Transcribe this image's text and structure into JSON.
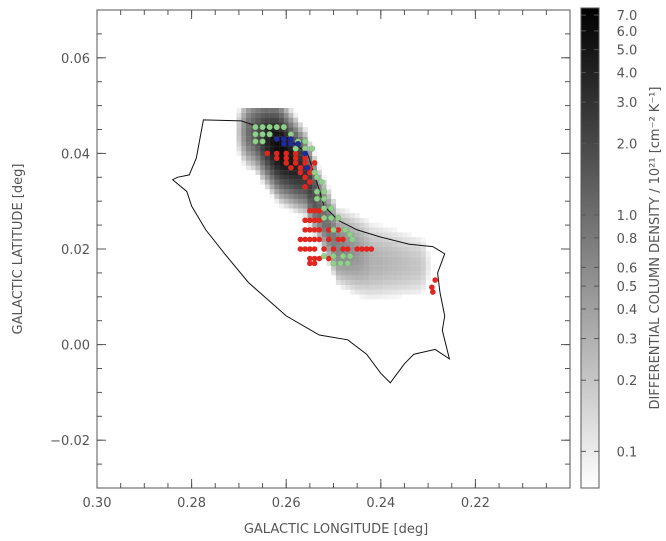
{
  "chart_data": {
    "type": "heatmap",
    "title": "",
    "xlabel": "GALACTIC LONGITUDE [deg]",
    "ylabel": "GALACTIC LATITUDE [deg]",
    "xlim": [
      0.3,
      0.2
    ],
    "ylim": [
      -0.03,
      0.07
    ],
    "x_ticks": [
      0.3,
      0.28,
      0.26,
      0.24,
      0.22
    ],
    "x_tick_labels": [
      "0.30",
      "0.28",
      "0.26",
      "0.24",
      "0.22"
    ],
    "y_ticks": [
      -0.02,
      0.0,
      0.02,
      0.04,
      0.06
    ],
    "y_tick_labels": [
      "−0.02",
      "0.00",
      "0.02",
      "0.04",
      "0.06"
    ],
    "colorbar": {
      "label": "DIFFERENTIAL COLUMN DENSITY / 10²¹ [cm⁻² K⁻¹]",
      "scale": "log",
      "range": [
        0.07,
        7.5
      ],
      "ticks": [
        0.1,
        0.2,
        0.3,
        0.4,
        0.5,
        0.6,
        0.8,
        1.0,
        2.0,
        3.0,
        4.0,
        5.0,
        6.0,
        7.0
      ],
      "tick_labels": [
        "0.1",
        "0.2",
        "0.3",
        "0.4",
        "0.5",
        "0.6",
        "0.8",
        "1.0",
        "2.0",
        "3.0",
        "4.0",
        "5.0",
        "6.0",
        "7.0"
      ],
      "colormap": [
        "#ffffff",
        "#000000"
      ]
    },
    "density_ridge": [
      {
        "l": 0.2665,
        "b": 0.0445,
        "peak": 1.5,
        "width": 0.0035
      },
      {
        "l": 0.2615,
        "b": 0.041,
        "peak": 6.5,
        "width": 0.004
      },
      {
        "l": 0.256,
        "b": 0.036,
        "peak": 3.0,
        "width": 0.0035
      },
      {
        "l": 0.253,
        "b": 0.029,
        "peak": 1.2,
        "width": 0.0035
      },
      {
        "l": 0.249,
        "b": 0.0205,
        "peak": 0.7,
        "width": 0.004
      },
      {
        "l": 0.242,
        "b": 0.0175,
        "peak": 0.3,
        "width": 0.005
      },
      {
        "l": 0.232,
        "b": 0.0165,
        "peak": 0.2,
        "width": 0.0045
      }
    ],
    "contour": [
      [
        0.2775,
        0.047
      ],
      [
        0.2695,
        0.0468
      ],
      [
        0.261,
        0.044
      ],
      [
        0.2555,
        0.04
      ],
      [
        0.2535,
        0.034
      ],
      [
        0.252,
        0.029
      ],
      [
        0.249,
        0.026
      ],
      [
        0.245,
        0.024
      ],
      [
        0.24,
        0.0225
      ],
      [
        0.234,
        0.021
      ],
      [
        0.229,
        0.0205
      ],
      [
        0.2265,
        0.019
      ],
      [
        0.228,
        0.015
      ],
      [
        0.2275,
        0.011
      ],
      [
        0.2265,
        0.006
      ],
      [
        0.227,
        0.003
      ],
      [
        0.2255,
        -0.003
      ],
      [
        0.2285,
        -0.001
      ],
      [
        0.233,
        -0.002
      ],
      [
        0.235,
        -0.004
      ],
      [
        0.238,
        -0.008
      ],
      [
        0.24,
        -0.006
      ],
      [
        0.243,
        -0.002
      ],
      [
        0.247,
        0.001
      ],
      [
        0.253,
        0.002
      ],
      [
        0.26,
        0.006
      ],
      [
        0.268,
        0.013
      ],
      [
        0.273,
        0.019
      ],
      [
        0.277,
        0.024
      ],
      [
        0.28,
        0.029
      ],
      [
        0.281,
        0.032
      ],
      [
        0.284,
        0.0345
      ],
      [
        0.283,
        0.035
      ],
      [
        0.2805,
        0.0355
      ],
      [
        0.279,
        0.039
      ],
      [
        0.2775,
        0.047
      ]
    ],
    "series": [
      {
        "marker": "filled-circle",
        "color": "#e0261f",
        "points": [
          [
            0.264,
            0.04
          ],
          [
            0.262,
            0.04
          ],
          [
            0.26,
            0.04
          ],
          [
            0.258,
            0.04
          ],
          [
            0.262,
            0.039
          ],
          [
            0.26,
            0.039
          ],
          [
            0.258,
            0.039
          ],
          [
            0.256,
            0.039
          ],
          [
            0.26,
            0.038
          ],
          [
            0.258,
            0.038
          ],
          [
            0.256,
            0.038
          ],
          [
            0.254,
            0.038
          ],
          [
            0.259,
            0.037
          ],
          [
            0.257,
            0.037
          ],
          [
            0.255,
            0.037
          ],
          [
            0.257,
            0.036
          ],
          [
            0.255,
            0.036
          ],
          [
            0.256,
            0.035
          ],
          [
            0.255,
            0.034
          ],
          [
            0.256,
            0.033
          ],
          [
            0.255,
            0.028
          ],
          [
            0.254,
            0.028
          ],
          [
            0.253,
            0.028
          ],
          [
            0.256,
            0.026
          ],
          [
            0.255,
            0.026
          ],
          [
            0.254,
            0.026
          ],
          [
            0.253,
            0.026
          ],
          [
            0.256,
            0.024
          ],
          [
            0.255,
            0.024
          ],
          [
            0.254,
            0.024
          ],
          [
            0.253,
            0.024
          ],
          [
            0.251,
            0.024
          ],
          [
            0.249,
            0.024
          ],
          [
            0.257,
            0.022
          ],
          [
            0.256,
            0.022
          ],
          [
            0.255,
            0.022
          ],
          [
            0.254,
            0.022
          ],
          [
            0.253,
            0.022
          ],
          [
            0.251,
            0.022
          ],
          [
            0.249,
            0.022
          ],
          [
            0.248,
            0.022
          ],
          [
            0.257,
            0.02
          ],
          [
            0.256,
            0.02
          ],
          [
            0.255,
            0.02
          ],
          [
            0.254,
            0.02
          ],
          [
            0.252,
            0.02
          ],
          [
            0.25,
            0.02
          ],
          [
            0.248,
            0.02
          ],
          [
            0.247,
            0.02
          ],
          [
            0.245,
            0.02
          ],
          [
            0.255,
            0.018
          ],
          [
            0.254,
            0.018
          ],
          [
            0.253,
            0.018
          ],
          [
            0.251,
            0.018
          ],
          [
            0.255,
            0.017
          ],
          [
            0.254,
            0.017
          ],
          [
            0.244,
            0.02
          ],
          [
            0.243,
            0.02
          ],
          [
            0.242,
            0.02
          ],
          [
            0.2285,
            0.0135
          ],
          [
            0.2292,
            0.012
          ],
          [
            0.229,
            0.011
          ]
        ]
      },
      {
        "marker": "filled-circle",
        "color": "#8fd08a",
        "points": [
          [
            0.2665,
            0.0455
          ],
          [
            0.265,
            0.0455
          ],
          [
            0.2635,
            0.0455
          ],
          [
            0.262,
            0.0455
          ],
          [
            0.2605,
            0.0455
          ],
          [
            0.2665,
            0.044
          ],
          [
            0.265,
            0.044
          ],
          [
            0.2635,
            0.044
          ],
          [
            0.259,
            0.044
          ],
          [
            0.2665,
            0.0425
          ],
          [
            0.265,
            0.0425
          ],
          [
            0.2575,
            0.0425
          ],
          [
            0.256,
            0.0425
          ],
          [
            0.258,
            0.041
          ],
          [
            0.256,
            0.041
          ],
          [
            0.2545,
            0.041
          ],
          [
            0.254,
            0.036
          ],
          [
            0.2535,
            0.035
          ],
          [
            0.2525,
            0.034
          ],
          [
            0.2535,
            0.032
          ],
          [
            0.252,
            0.032
          ],
          [
            0.2535,
            0.0305
          ],
          [
            0.252,
            0.0305
          ],
          [
            0.252,
            0.0285
          ],
          [
            0.2505,
            0.0285
          ],
          [
            0.252,
            0.0265
          ],
          [
            0.2505,
            0.0265
          ],
          [
            0.249,
            0.0265
          ],
          [
            0.25,
            0.024
          ],
          [
            0.2475,
            0.024
          ],
          [
            0.2465,
            0.023
          ],
          [
            0.246,
            0.022
          ],
          [
            0.252,
            0.0185
          ],
          [
            0.25,
            0.0185
          ],
          [
            0.248,
            0.0185
          ],
          [
            0.2465,
            0.0185
          ],
          [
            0.25,
            0.017
          ],
          [
            0.2485,
            0.017
          ],
          [
            0.247,
            0.017
          ]
        ]
      },
      {
        "marker": "filled-circle",
        "color": "#1f2a9e",
        "points": [
          [
            0.262,
            0.043
          ],
          [
            0.2605,
            0.043
          ],
          [
            0.259,
            0.043
          ],
          [
            0.2605,
            0.042
          ],
          [
            0.259,
            0.042
          ],
          [
            0.2575,
            0.042
          ],
          [
            0.256,
            0.04
          ],
          [
            0.2555,
            0.037
          ]
        ]
      }
    ]
  }
}
